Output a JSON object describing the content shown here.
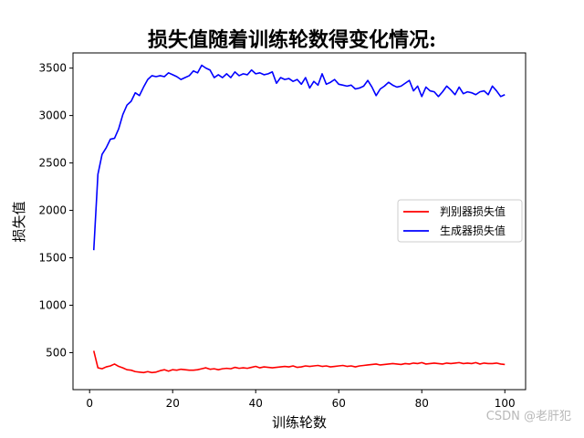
{
  "chart_data": {
    "type": "line",
    "title": "损失值随着训练轮数得变化情况:",
    "xlabel": "训练轮数",
    "ylabel": "损失值",
    "xlim": [
      -4,
      105
    ],
    "ylim": [
      110,
      3660
    ],
    "xticks": [
      0,
      20,
      40,
      60,
      80,
      100
    ],
    "yticks": [
      500,
      1000,
      1500,
      2000,
      2500,
      3000,
      3500
    ],
    "legend_position": "center-right",
    "grid": false,
    "x": [
      1,
      2,
      3,
      4,
      5,
      6,
      7,
      8,
      9,
      10,
      11,
      12,
      13,
      14,
      15,
      16,
      17,
      18,
      19,
      20,
      21,
      22,
      23,
      24,
      25,
      26,
      27,
      28,
      29,
      30,
      31,
      32,
      33,
      34,
      35,
      36,
      37,
      38,
      39,
      40,
      41,
      42,
      43,
      44,
      45,
      46,
      47,
      48,
      49,
      50,
      51,
      52,
      53,
      54,
      55,
      56,
      57,
      58,
      59,
      60,
      61,
      62,
      63,
      64,
      65,
      66,
      67,
      68,
      69,
      70,
      71,
      72,
      73,
      74,
      75,
      76,
      77,
      78,
      79,
      80,
      81,
      82,
      83,
      84,
      85,
      86,
      87,
      88,
      89,
      90,
      91,
      92,
      93,
      94,
      95,
      96,
      97,
      98,
      99,
      100
    ],
    "series": [
      {
        "name": "判别器损失值",
        "color": "#ff0000",
        "values": [
          520,
          340,
          330,
          350,
          360,
          380,
          355,
          340,
          320,
          315,
          300,
          295,
          290,
          300,
          290,
          295,
          310,
          320,
          305,
          320,
          315,
          325,
          320,
          315,
          315,
          320,
          330,
          340,
          325,
          330,
          320,
          330,
          335,
          330,
          345,
          335,
          340,
          335,
          345,
          355,
          340,
          350,
          345,
          340,
          345,
          350,
          355,
          350,
          360,
          345,
          350,
          360,
          355,
          360,
          365,
          355,
          360,
          350,
          355,
          360,
          365,
          355,
          360,
          350,
          360,
          365,
          370,
          375,
          380,
          370,
          375,
          380,
          385,
          380,
          375,
          385,
          380,
          390,
          385,
          395,
          380,
          385,
          390,
          385,
          380,
          390,
          385,
          390,
          395,
          385,
          390,
          385,
          395,
          380,
          390,
          385,
          385,
          390,
          380,
          375
        ]
      },
      {
        "name": "生成器损失值",
        "color": "#0000ff",
        "values": [
          1580,
          2380,
          2590,
          2660,
          2750,
          2760,
          2860,
          3010,
          3110,
          3150,
          3240,
          3210,
          3300,
          3380,
          3420,
          3410,
          3420,
          3410,
          3450,
          3430,
          3410,
          3380,
          3400,
          3420,
          3470,
          3450,
          3530,
          3500,
          3480,
          3400,
          3430,
          3400,
          3440,
          3400,
          3460,
          3420,
          3440,
          3430,
          3480,
          3440,
          3450,
          3430,
          3440,
          3460,
          3340,
          3400,
          3380,
          3390,
          3360,
          3380,
          3330,
          3400,
          3290,
          3360,
          3320,
          3440,
          3330,
          3350,
          3380,
          3330,
          3320,
          3310,
          3320,
          3280,
          3290,
          3310,
          3370,
          3300,
          3210,
          3280,
          3310,
          3350,
          3320,
          3300,
          3310,
          3340,
          3370,
          3260,
          3310,
          3200,
          3300,
          3260,
          3250,
          3200,
          3250,
          3310,
          3270,
          3220,
          3300,
          3230,
          3250,
          3240,
          3220,
          3250,
          3260,
          3220,
          3310,
          3260,
          3200,
          3220
        ]
      }
    ]
  },
  "watermark": "CSDN @老肝犯"
}
